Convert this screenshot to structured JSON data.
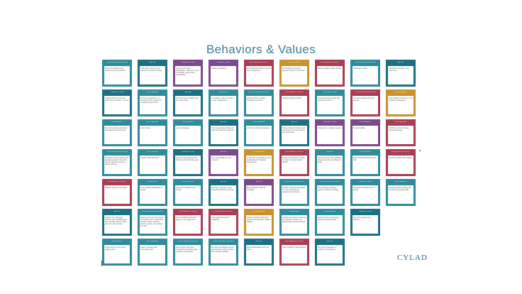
{
  "title": "Behaviors & Values",
  "logo": "CYLAD",
  "colors": {
    "teal": "#2f8a9a",
    "purple": "#7b4a8c",
    "maroon": "#a83d54",
    "gold": "#c8922f",
    "deep-teal": "#1d6f82"
  },
  "cards": [
    {
      "color": "teal",
      "header": "Curiosity and Resourcefulness",
      "body": "Show consideration and respect to every interaction"
    },
    {
      "color": "deep-teal",
      "header": "Team Spirit",
      "body": "Think about common and collective benefit and impact"
    },
    {
      "color": "purple",
      "header": "Commitment to Value",
      "body": "Consult your project stakeholders, value is as much as possible, respect their expectations"
    },
    {
      "color": "purple",
      "header": "Commitment to Value",
      "body": "Clarify expectations"
    },
    {
      "color": "maroon",
      "header": "Drive Ownership & Continuity",
      "body": "Be relevant and build on what is here and partners"
    },
    {
      "color": "gold",
      "header": "Entrepreneurship",
      "body": "Demonstrate a proactive approach and be a self starter"
    },
    {
      "color": "maroon",
      "header": "Drive Ownership & Continuity",
      "body": "Make a positive relation impact"
    },
    {
      "color": "teal",
      "header": "Curiosity and Resourcefulness",
      "body": "Challenge yourself"
    },
    {
      "color": "deep-teal",
      "header": "Team Spirit",
      "body": "Celebrate successes, even small ones"
    },
    {
      "color": "deep-teal",
      "header": "Commitment to Value",
      "body": "Comply with the rules to be 100% clear & delivery, 1 minute =..."
    },
    {
      "color": "teal",
      "header": "Drive & Leadership",
      "body": "Focus on exceptions, e.g. Something I am unaware of \"possible improvement\"..."
    },
    {
      "color": "deep-teal",
      "header": "Team Spirit",
      "body": "Think and act in solidarity with the project team"
    },
    {
      "color": "teal",
      "header": "Personal Safety",
      "body": "If necessary, report a concern to your management"
    },
    {
      "color": "teal",
      "header": "Curiosity and Resourcefulness",
      "body": "Actively listens, consider information and focus"
    },
    {
      "color": "maroon",
      "header": "Drive Ownership & Continuity",
      "body": "Develop a strong mindset"
    },
    {
      "color": "teal",
      "header": "Commitment to Value",
      "body": "Keep clear and the team with expertise and focus"
    },
    {
      "color": "maroon",
      "header": "Curiosity and Resourcefulness",
      "body": "Our client interpersonal and learning"
    },
    {
      "color": "gold",
      "header": "Entrepreneurship",
      "body": "Instil Cyclad Commitment in the company development"
    },
    {
      "color": "teal",
      "header": "Personal Safety",
      "body": "Be communicative and shows transparency and discretion"
    },
    {
      "color": "teal",
      "header": "Drive & Leadership",
      "body": "Learn to dare"
    },
    {
      "color": "teal",
      "header": "Drive & Leadership",
      "body": "Learn to delegate"
    },
    {
      "color": "deep-teal",
      "header": "Team Spirit",
      "body": "Think beyond deliverables, be adult and simply the expected"
    },
    {
      "color": "teal",
      "header": "Drive & Leadership",
      "body": "Focus for continuous learning"
    },
    {
      "color": "deep-teal",
      "header": "Team Spirit",
      "body": "Actively share information and experience in the team and be one step ahead"
    },
    {
      "color": "purple",
      "header": "Commitment to Value",
      "body": "Forget give up, always keep up"
    },
    {
      "color": "purple",
      "header": "Drive & Leadership",
      "body": "Be accountable"
    },
    {
      "color": "maroon",
      "header": "Drive & Leadership",
      "body": "Contribute to help increase internal processes"
    },
    {
      "color": "teal",
      "header": "Curiosity and Resourcefulness",
      "body": "Participate in team sharing and integrating ideas in the aim to have a collective success, it always learning"
    },
    {
      "color": "teal",
      "header": "Drive & Leadership",
      "body": "Choose \"good intentions\""
    },
    {
      "color": "deep-teal",
      "header": "Commitment to Value",
      "body": "Include responsiveness with balance and not tolerating fast"
    },
    {
      "color": "purple",
      "header": "Team Spirit",
      "body": "Take responsibility for your concerns"
    },
    {
      "color": "gold",
      "header": "Entrepreneurship",
      "body": "At any time, seek Business and opportunities for business development"
    },
    {
      "color": "maroon",
      "header": "Drive Ownership & Continuity",
      "body": "Always stay informed, be able to relate to Cyclad's clients' Mission"
    },
    {
      "color": "teal",
      "header": "Team Spirit",
      "body": "Take care not to dare regarding though and when needing the a group"
    },
    {
      "color": "teal",
      "header": "Drive & Leadership",
      "body": "Apply critical thinking and take care"
    },
    {
      "color": "maroon",
      "header": "Drive Ownership & Continuity",
      "body": "Choose a positive team attitude"
    },
    {
      "color": "maroon",
      "header": "Drive Ownership & Continuity",
      "body": "Motivate and even new ideas"
    },
    {
      "color": "teal",
      "header": "Personal Safety",
      "body": "Be a versatile ambassador of Cyclad"
    },
    {
      "color": "teal",
      "header": "Drive & Leadership",
      "body": "Grow your innovation and energy"
    },
    {
      "color": "deep-teal",
      "header": "Team Spirit",
      "body": "Empower yourself, be clear ownership and show success"
    },
    {
      "color": "purple",
      "header": "Team Spirit",
      "body": "Be our definitive client at Cyclad(s)"
    },
    {
      "color": "teal",
      "header": "Curiosity and Resourcefulness",
      "body": "Provide constructive feedback to more developments (proactive and bravely)"
    },
    {
      "color": "teal",
      "header": "Curiosity and Resourcefulness",
      "body": "When sharing a problem, perform a statement critical"
    },
    {
      "color": "teal",
      "header": "Commitment to Value",
      "body": "Tell positive and take care of people"
    },
    {
      "color": "teal",
      "header": "Drive & Leadership",
      "body": "Assume decision-making with conviction to develop skills"
    },
    {
      "color": "deep-teal",
      "header": "Team Spirit",
      "body": "Explain your colleagues, welcome and emphasise any risk, and take care for, define your point, find positive..."
    },
    {
      "color": "teal",
      "header": "Curiosity and Resourcefulness",
      "body": "Always seek to do your best to your clients' team, understand specific context, what are clients' benefits, and evaluate the risks"
    },
    {
      "color": "maroon",
      "header": "Drive Ownership & Continuity",
      "body": "Act on feedback, listen and apply it in your daily work"
    },
    {
      "color": "maroon",
      "header": "Drive Ownership & Continuity",
      "body": "Count legitimacy with an adaptation"
    },
    {
      "color": "gold",
      "header": "Entrepreneurship",
      "body": "Choose business value and interpersonal approach \"make it happen\""
    },
    {
      "color": "teal",
      "header": "Personal Safety",
      "body": "Consider and respect values on this objective and the non-discriminatory selected criteria"
    },
    {
      "color": "teal",
      "header": "Drive & Leadership",
      "body": "Develop better processing to share successful models"
    },
    {
      "color": "deep-teal",
      "header": "Commitment to Value",
      "body": "Give active spaces your direction"
    },
    {
      "color": "teal",
      "header": "Personal Safety",
      "body": "Think and act on the limit of positive gains"
    },
    {
      "color": "teal",
      "header": "Drive & Leadership",
      "body": "Coach, empower, and encourage others"
    },
    {
      "color": "teal",
      "header": "Curiosity and Resourcefulness",
      "body": "Do not forget, then take conclusions and always take conflicts constructively"
    },
    {
      "color": "teal",
      "header": "Curiosity and Resourcefulness",
      "body": "Be clear and manage concern, acknowledge people and give them positive feedback"
    },
    {
      "color": "deep-teal",
      "header": "Team Spirit",
      "body": "Work collaboratively and your ideas"
    },
    {
      "color": "maroon",
      "header": "Drive Ownership & Continuity",
      "body": "Never hesitate to ask questions"
    },
    {
      "color": "deep-teal",
      "header": "Team Spirit",
      "body": "Do not put colleagues in position of complacency"
    }
  ]
}
